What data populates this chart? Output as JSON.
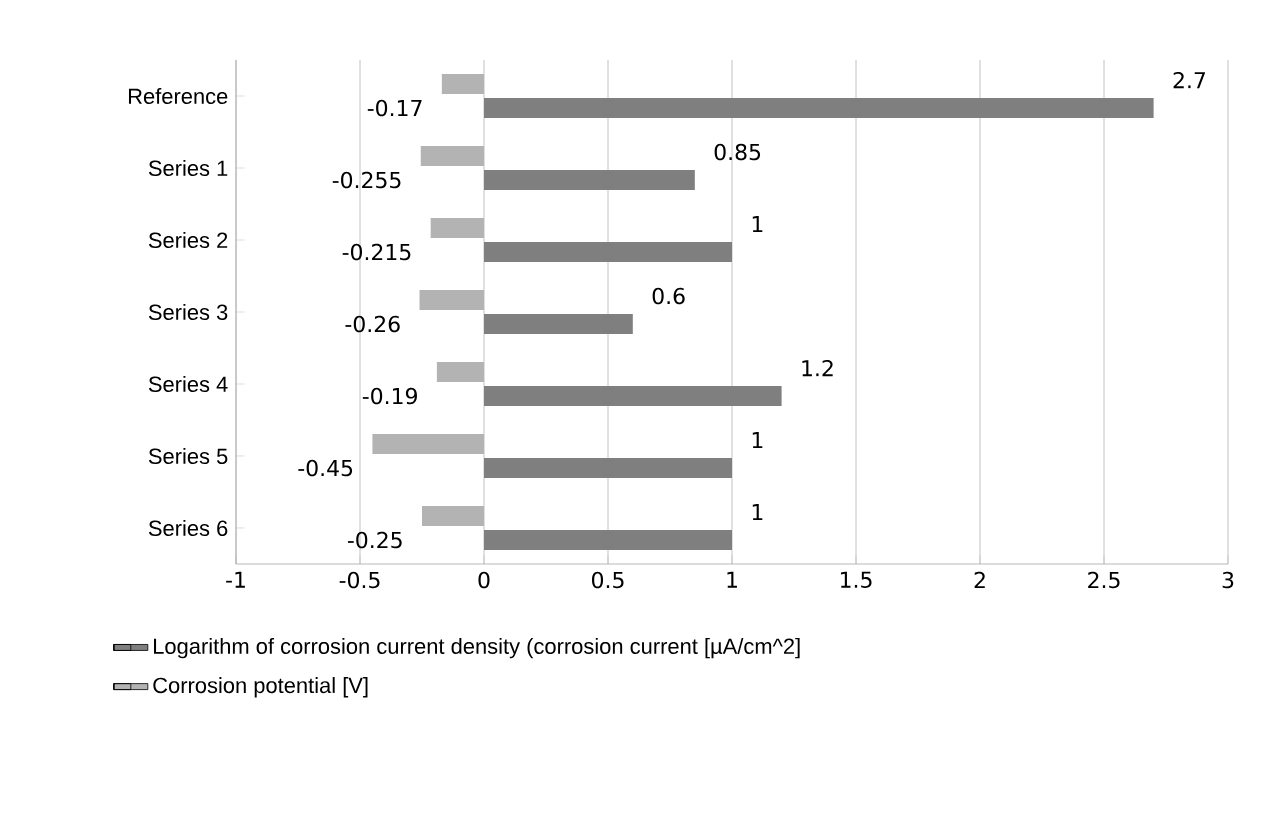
{
  "chart_data": {
    "type": "bar",
    "orientation": "horizontal",
    "categories": [
      "Reference",
      "Series 1",
      "Series 2",
      "Series 3",
      "Series 4",
      "Series 5",
      "Series 6"
    ],
    "series": [
      {
        "name": "Logarithm of corrosion current density (corrosion current [µA/cm^2]",
        "color": "#7f7f7f",
        "values": [
          2.7,
          0.85,
          1,
          0.6,
          1.2,
          1,
          1
        ]
      },
      {
        "name": "Corrosion potential [V]",
        "color": "#b3b3b3",
        "values": [
          -0.17,
          -0.255,
          -0.215,
          -0.26,
          -0.19,
          -0.45,
          -0.25
        ]
      }
    ],
    "xlim": [
      -1,
      3
    ],
    "xticks": [
      -1,
      -0.5,
      0,
      0.5,
      1,
      1.5,
      2,
      2.5,
      3
    ],
    "grid": "x",
    "legend": "bottom",
    "data_labels": true
  }
}
